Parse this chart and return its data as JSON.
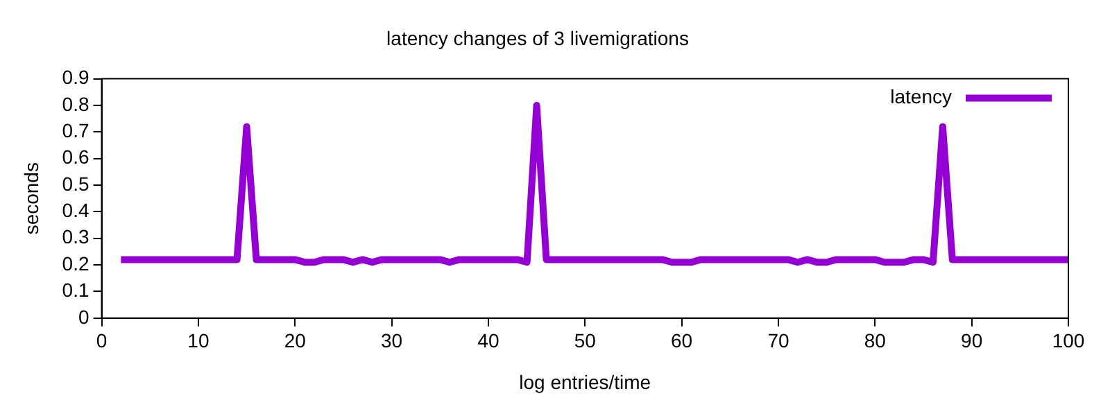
{
  "chart_data": {
    "type": "line",
    "title": "latency changes of 3 livemigrations",
    "xlabel": "log entries/time",
    "ylabel": "seconds",
    "x": [
      2,
      3,
      4,
      5,
      6,
      7,
      8,
      9,
      10,
      11,
      12,
      13,
      14,
      15,
      16,
      17,
      18,
      19,
      20,
      21,
      22,
      23,
      24,
      25,
      26,
      27,
      28,
      29,
      30,
      31,
      32,
      33,
      34,
      35,
      36,
      37,
      38,
      39,
      40,
      41,
      42,
      43,
      44,
      45,
      46,
      47,
      48,
      49,
      50,
      51,
      52,
      53,
      54,
      55,
      56,
      57,
      58,
      59,
      60,
      61,
      62,
      63,
      64,
      65,
      66,
      67,
      68,
      69,
      70,
      71,
      72,
      73,
      74,
      75,
      76,
      77,
      78,
      79,
      80,
      81,
      82,
      83,
      84,
      85,
      86,
      87,
      88,
      89,
      90,
      91,
      92,
      93,
      94,
      95,
      96,
      97,
      98,
      99,
      100
    ],
    "series": [
      {
        "name": "latency",
        "color": "#9400d3",
        "values": [
          0.22,
          0.22,
          0.22,
          0.22,
          0.22,
          0.22,
          0.22,
          0.22,
          0.22,
          0.22,
          0.22,
          0.22,
          0.22,
          0.72,
          0.22,
          0.22,
          0.22,
          0.22,
          0.22,
          0.21,
          0.21,
          0.22,
          0.22,
          0.22,
          0.21,
          0.22,
          0.21,
          0.22,
          0.22,
          0.22,
          0.22,
          0.22,
          0.22,
          0.22,
          0.21,
          0.22,
          0.22,
          0.22,
          0.22,
          0.22,
          0.22,
          0.22,
          0.21,
          0.8,
          0.22,
          0.22,
          0.22,
          0.22,
          0.22,
          0.22,
          0.22,
          0.22,
          0.22,
          0.22,
          0.22,
          0.22,
          0.22,
          0.21,
          0.21,
          0.21,
          0.22,
          0.22,
          0.22,
          0.22,
          0.22,
          0.22,
          0.22,
          0.22,
          0.22,
          0.22,
          0.21,
          0.22,
          0.21,
          0.21,
          0.22,
          0.22,
          0.22,
          0.22,
          0.22,
          0.21,
          0.21,
          0.21,
          0.22,
          0.22,
          0.21,
          0.72,
          0.22,
          0.22,
          0.22,
          0.22,
          0.22,
          0.22,
          0.22,
          0.22,
          0.22,
          0.22,
          0.22,
          0.22,
          0.22
        ]
      }
    ],
    "xlim": [
      0,
      100
    ],
    "xticks": [
      0,
      10,
      20,
      30,
      40,
      50,
      60,
      70,
      80,
      90,
      100
    ],
    "ylim": [
      0,
      0.9
    ],
    "yticks": [
      0,
      0.1,
      0.2,
      0.3,
      0.4,
      0.5,
      0.6,
      0.7,
      0.8,
      0.9
    ],
    "legend": "top right",
    "grid": false,
    "marker": "none",
    "line_style": "solid"
  }
}
